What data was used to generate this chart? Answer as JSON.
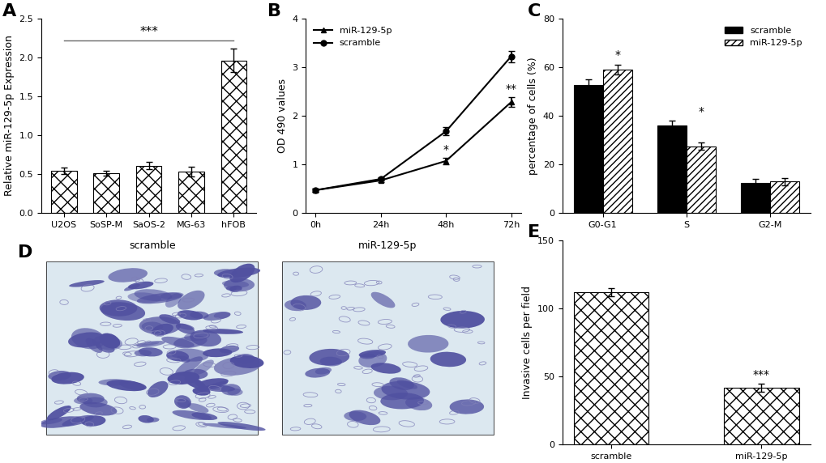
{
  "panel_A": {
    "categories": [
      "U2OS",
      "SoSP-M",
      "SaOS-2",
      "MG-63",
      "hFOB"
    ],
    "values": [
      0.54,
      0.51,
      0.61,
      0.53,
      1.96
    ],
    "errors": [
      0.04,
      0.03,
      0.05,
      0.06,
      0.15
    ],
    "ylabel": "Relative miR-129-5p Expression",
    "ylim": [
      0,
      2.5
    ],
    "yticks": [
      0.0,
      0.5,
      1.0,
      1.5,
      2.0,
      2.5
    ],
    "sig_text": "***",
    "panel_label": "A"
  },
  "panel_B": {
    "timepoints": [
      0,
      24,
      48,
      72
    ],
    "mir_values": [
      0.47,
      0.67,
      1.07,
      2.28
    ],
    "mir_errors": [
      0.03,
      0.04,
      0.07,
      0.1
    ],
    "scramble_values": [
      0.47,
      0.7,
      1.68,
      3.22
    ],
    "scramble_errors": [
      0.03,
      0.04,
      0.08,
      0.12
    ],
    "ylabel": "OD 490 values",
    "ylim": [
      0,
      4
    ],
    "yticks": [
      0,
      1,
      2,
      3,
      4
    ],
    "xtick_labels": [
      "0h",
      "24h",
      "48h",
      "72h"
    ],
    "sig_48": "*",
    "sig_72": "**",
    "panel_label": "B",
    "legend_mir": "miR-129-5p",
    "legend_scramble": "scramble"
  },
  "panel_C": {
    "phases": [
      "G0-G1",
      "S",
      "G2-M"
    ],
    "scramble_values": [
      52.5,
      36.0,
      12.5
    ],
    "scramble_errors": [
      2.5,
      2.0,
      1.5
    ],
    "mir_values": [
      59.0,
      27.5,
      13.0
    ],
    "mir_errors": [
      2.0,
      1.5,
      1.5
    ],
    "ylabel": "percentage of cells (%)",
    "ylim": [
      0,
      80
    ],
    "yticks": [
      0,
      20,
      40,
      60,
      80
    ],
    "sig": [
      "*",
      "*",
      ""
    ],
    "panel_label": "C",
    "legend_scramble": "scramble",
    "legend_mir": "miR-129-5p"
  },
  "panel_D": {
    "panel_label": "D",
    "label_scramble": "scramble",
    "label_mir": "miR-129-5p",
    "bg_color": "#dce8f0",
    "large_cell_color": "#5050a0",
    "small_cell_color": "#8080b8",
    "n_large_scramble": 55,
    "n_small_scramble": 80,
    "n_large_mir": 15,
    "n_small_mir": 60
  },
  "panel_E": {
    "categories": [
      "scramble",
      "miR-129-5p"
    ],
    "values": [
      112.0,
      42.0
    ],
    "errors": [
      3.0,
      3.0
    ],
    "ylabel": "Invasive cells per field",
    "ylim": [
      0,
      150
    ],
    "yticks": [
      0,
      50,
      100,
      150
    ],
    "sig": "***",
    "panel_label": "E"
  },
  "colors": {
    "bg": "#ffffff"
  },
  "font_sizes": {
    "panel_label": 16,
    "axis_label": 9,
    "tick_label": 8,
    "legend": 8,
    "sig": 10
  }
}
